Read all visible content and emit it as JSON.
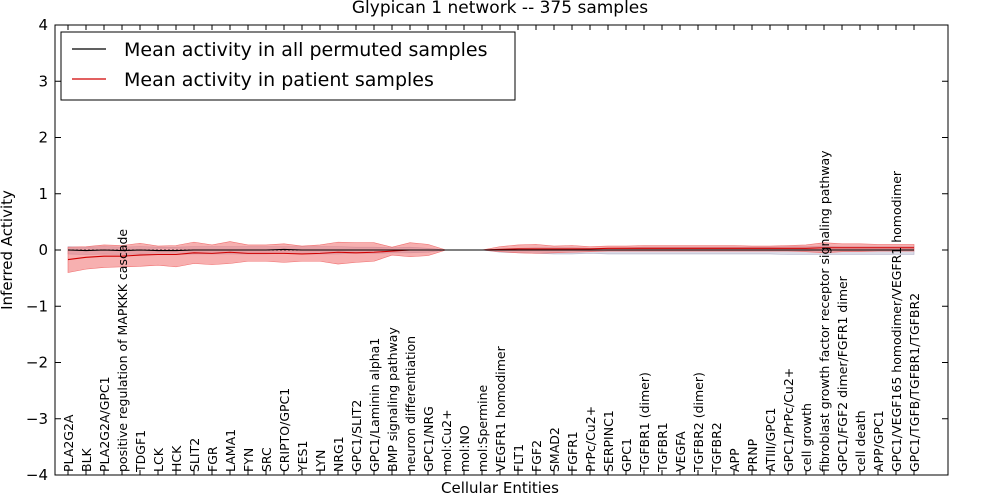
{
  "chart_data": {
    "type": "line",
    "title": "Glypican 1 network -- 375 samples",
    "xlabel": "Cellular Entities",
    "ylabel": "Inferred Activity",
    "ylim": [
      -4,
      4
    ],
    "yticks": [
      "4",
      "3",
      "2",
      "1",
      "0",
      "−1",
      "−2",
      "−3",
      "−4"
    ],
    "ytick_values": [
      4,
      3,
      2,
      1,
      0,
      -1,
      -2,
      -3,
      -4
    ],
    "legend_position": "top-left",
    "categories": [
      "PLA2G2A",
      "BLK",
      "PLA2G2A/GPC1",
      "positive regulation of MAPKKK cascade",
      "TDGF1",
      "LCK",
      "HCK",
      "SLIT2",
      "FGR",
      "LAMA1",
      "FYN",
      "SRC",
      "CRIPTO/GPC1",
      "YES1",
      "LYN",
      "NRG1",
      "GPC1/SLIT2",
      "GPC1/Laminin alpha1",
      "BMP signaling pathway",
      "neuron differentiation",
      "GPC1/NRG",
      "mol:Cu2+",
      "mol:NO",
      "mol:Spermine",
      "VEGFR1 homodimer",
      "FLT1",
      "FGF2",
      "SMAD2",
      "FGFR1",
      "PrPc/Cu2+",
      "SERPINC1",
      "GPC1",
      "TGFBR1 (dimer)",
      "TGFBR1",
      "VEGFA",
      "TGFBR2 (dimer)",
      "TGFBR2",
      "APP",
      "PRNP",
      "ATIII/GPC1",
      "GPC1/PrPc/Cu2+",
      "cell growth",
      "fibroblast growth factor receptor signaling pathway",
      "GPC1/FGF2 dimer/FGFR1 dimer",
      "cell death",
      "APP/GPC1",
      "GPC1/VEGF165 homodimer/VEGFR1 homodimer",
      "GPC1/TGFB/TGFBR1/TGFBR2"
    ],
    "series": [
      {
        "name": "Mean activity in all permuted samples",
        "color": "#000000",
        "band_color": "#b0b0c8",
        "values": [
          0.0,
          -0.01,
          0.0,
          -0.01,
          0.0,
          -0.01,
          -0.01,
          0.0,
          0.0,
          0.0,
          0.0,
          0.0,
          0.01,
          0.0,
          0.0,
          0.0,
          0.0,
          0.0,
          0.0,
          0.0,
          0.0,
          0.0,
          0.0,
          0.0,
          0.0,
          0.0,
          0.0,
          0.0,
          0.0,
          0.0,
          0.0,
          0.0,
          0.0,
          0.0,
          0.0,
          0.0,
          0.0,
          0.0,
          0.0,
          0.0,
          0.0,
          0.0,
          0.0,
          0.0,
          0.0,
          0.0,
          0.0,
          0.0
        ],
        "upper": [
          0.06,
          0.05,
          0.06,
          0.05,
          0.06,
          0.05,
          0.05,
          0.06,
          0.06,
          0.06,
          0.06,
          0.06,
          0.06,
          0.06,
          0.06,
          0.06,
          0.05,
          0.05,
          0.04,
          0.05,
          0.03,
          0.0,
          0.0,
          0.0,
          0.02,
          0.03,
          0.04,
          0.04,
          0.04,
          0.03,
          0.03,
          0.04,
          0.05,
          0.05,
          0.05,
          0.05,
          0.05,
          0.05,
          0.05,
          0.05,
          0.06,
          0.06,
          0.07,
          0.06,
          0.06,
          0.06,
          0.06,
          0.06
        ],
        "lower": [
          -0.07,
          -0.08,
          -0.07,
          -0.08,
          -0.07,
          -0.08,
          -0.08,
          -0.07,
          -0.07,
          -0.07,
          -0.07,
          -0.07,
          -0.06,
          -0.07,
          -0.07,
          -0.07,
          -0.06,
          -0.06,
          -0.05,
          -0.05,
          -0.04,
          0.0,
          0.0,
          0.0,
          -0.04,
          -0.05,
          -0.06,
          -0.07,
          -0.07,
          -0.06,
          -0.07,
          -0.07,
          -0.07,
          -0.07,
          -0.07,
          -0.07,
          -0.07,
          -0.07,
          -0.07,
          -0.07,
          -0.08,
          -0.08,
          -0.08,
          -0.08,
          -0.08,
          -0.08,
          -0.08,
          -0.08
        ]
      },
      {
        "name": "Mean activity in patient samples",
        "color": "#d00000",
        "band_color": "#f07070",
        "values": [
          -0.17,
          -0.13,
          -0.11,
          -0.11,
          -0.09,
          -0.08,
          -0.08,
          -0.05,
          -0.06,
          -0.04,
          -0.06,
          -0.06,
          -0.06,
          -0.07,
          -0.06,
          -0.04,
          -0.05,
          -0.04,
          -0.02,
          0.0,
          0.0,
          0.0,
          0.0,
          0.0,
          0.01,
          0.02,
          0.02,
          0.02,
          0.02,
          0.02,
          0.03,
          0.03,
          0.03,
          0.03,
          0.03,
          0.03,
          0.03,
          0.03,
          0.03,
          0.03,
          0.03,
          0.03,
          0.04,
          0.04,
          0.04,
          0.04,
          0.04,
          0.04
        ],
        "upper": [
          0.05,
          0.06,
          0.09,
          0.08,
          0.12,
          0.07,
          0.08,
          0.14,
          0.09,
          0.15,
          0.09,
          0.09,
          0.11,
          0.07,
          0.09,
          0.14,
          0.13,
          0.13,
          0.05,
          0.13,
          0.1,
          0.0,
          0.0,
          0.0,
          0.06,
          0.09,
          0.1,
          0.07,
          0.08,
          0.06,
          0.07,
          0.07,
          0.08,
          0.08,
          0.08,
          0.08,
          0.08,
          0.08,
          0.07,
          0.07,
          0.08,
          0.09,
          0.13,
          0.11,
          0.11,
          0.1,
          0.1,
          0.1
        ],
        "lower": [
          -0.4,
          -0.34,
          -0.31,
          -0.3,
          -0.29,
          -0.27,
          -0.3,
          -0.24,
          -0.26,
          -0.24,
          -0.2,
          -0.2,
          -0.22,
          -0.2,
          -0.2,
          -0.25,
          -0.22,
          -0.2,
          -0.09,
          -0.12,
          -0.1,
          0.0,
          0.0,
          0.0,
          -0.03,
          -0.05,
          -0.06,
          -0.05,
          -0.04,
          -0.03,
          -0.02,
          -0.02,
          -0.02,
          -0.02,
          -0.02,
          -0.02,
          -0.02,
          -0.02,
          -0.02,
          -0.02,
          -0.02,
          -0.03,
          -0.05,
          -0.03,
          -0.03,
          -0.02,
          -0.02,
          -0.02
        ]
      }
    ]
  }
}
